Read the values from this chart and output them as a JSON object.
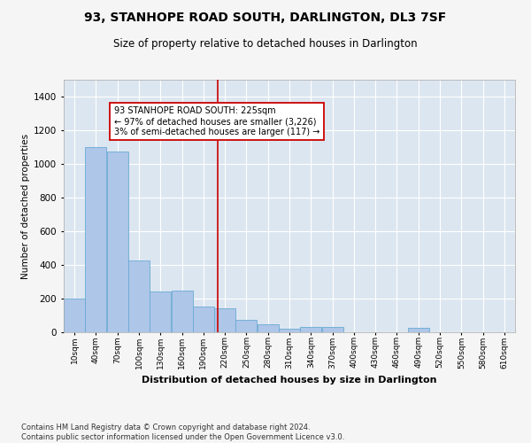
{
  "title": "93, STANHOPE ROAD SOUTH, DARLINGTON, DL3 7SF",
  "subtitle": "Size of property relative to detached houses in Darlington",
  "xlabel": "Distribution of detached houses by size in Darlington",
  "ylabel": "Number of detached properties",
  "bar_color": "#aec6e8",
  "bar_edge_color": "#6aaad4",
  "background_color": "#dce6f0",
  "grid_color": "#ffffff",
  "annotation_line_color": "#cc0000",
  "annotation_box_text": "93 STANHOPE ROAD SOUTH: 225sqm\n← 97% of detached houses are smaller (3,226)\n3% of semi-detached houses are larger (117) →",
  "marker_value": 225,
  "footnote": "Contains HM Land Registry data © Crown copyright and database right 2024.\nContains public sector information licensed under the Open Government Licence v3.0.",
  "bin_labels": [
    "10sqm",
    "40sqm",
    "70sqm",
    "100sqm",
    "130sqm",
    "160sqm",
    "190sqm",
    "220sqm",
    "250sqm",
    "280sqm",
    "310sqm",
    "340sqm",
    "370sqm",
    "400sqm",
    "430sqm",
    "460sqm",
    "490sqm",
    "520sqm",
    "550sqm",
    "580sqm",
    "610sqm"
  ],
  "bin_starts": [
    10,
    40,
    70,
    100,
    130,
    160,
    190,
    220,
    250,
    280,
    310,
    340,
    370,
    400,
    430,
    460,
    490,
    520,
    550,
    580,
    610
  ],
  "bin_width": 30,
  "bar_heights": [
    200,
    1100,
    1075,
    425,
    240,
    245,
    155,
    140,
    75,
    50,
    20,
    30,
    30,
    0,
    0,
    0,
    25,
    0,
    0,
    0,
    0
  ],
  "ylim": [
    0,
    1500
  ],
  "yticks": [
    0,
    200,
    400,
    600,
    800,
    1000,
    1200,
    1400
  ],
  "fig_width": 6.0,
  "fig_height": 5.0,
  "dpi": 100
}
